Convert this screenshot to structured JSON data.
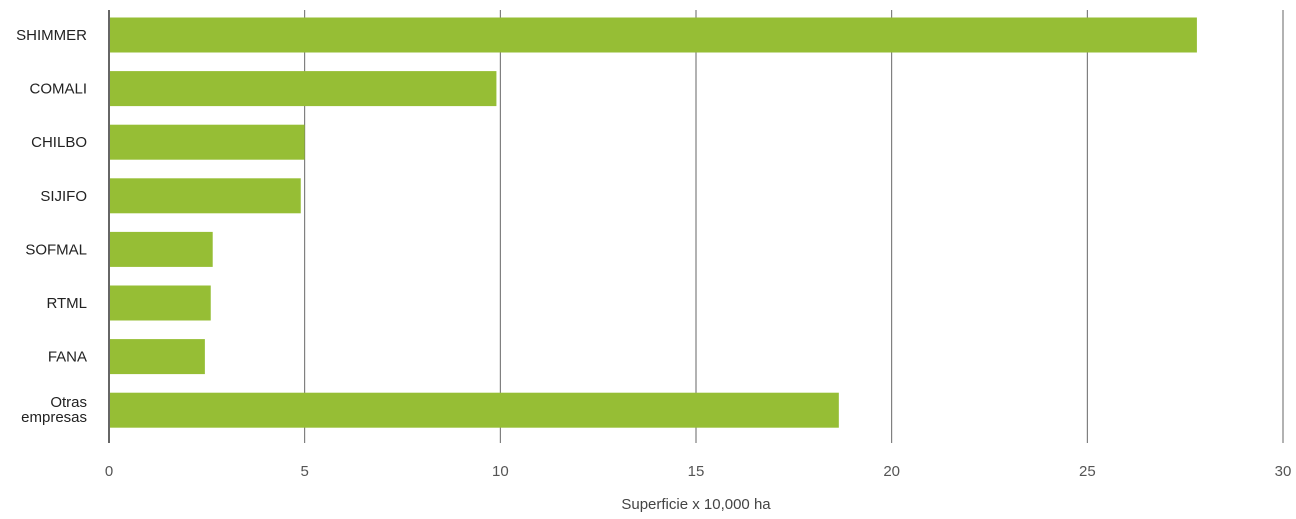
{
  "chart_data": {
    "type": "bar",
    "orientation": "horizontal",
    "categories": [
      "SHIMMER",
      "COMALI",
      "CHILBO",
      "SIJIFO",
      "SOFMAL",
      "RTML",
      "FANA",
      "Otras empresas"
    ],
    "values": [
      27.8,
      9.9,
      5.0,
      4.9,
      2.65,
      2.6,
      2.45,
      18.65
    ],
    "xlabel": "Superficie x 10,000 ha",
    "ylabel": "",
    "xlim": [
      0,
      30
    ],
    "xticks": [
      "0",
      "5",
      "10",
      "15",
      "20",
      "25",
      "30"
    ],
    "grid": "vertical",
    "legend": "none",
    "bar_color": "#96BE35"
  }
}
